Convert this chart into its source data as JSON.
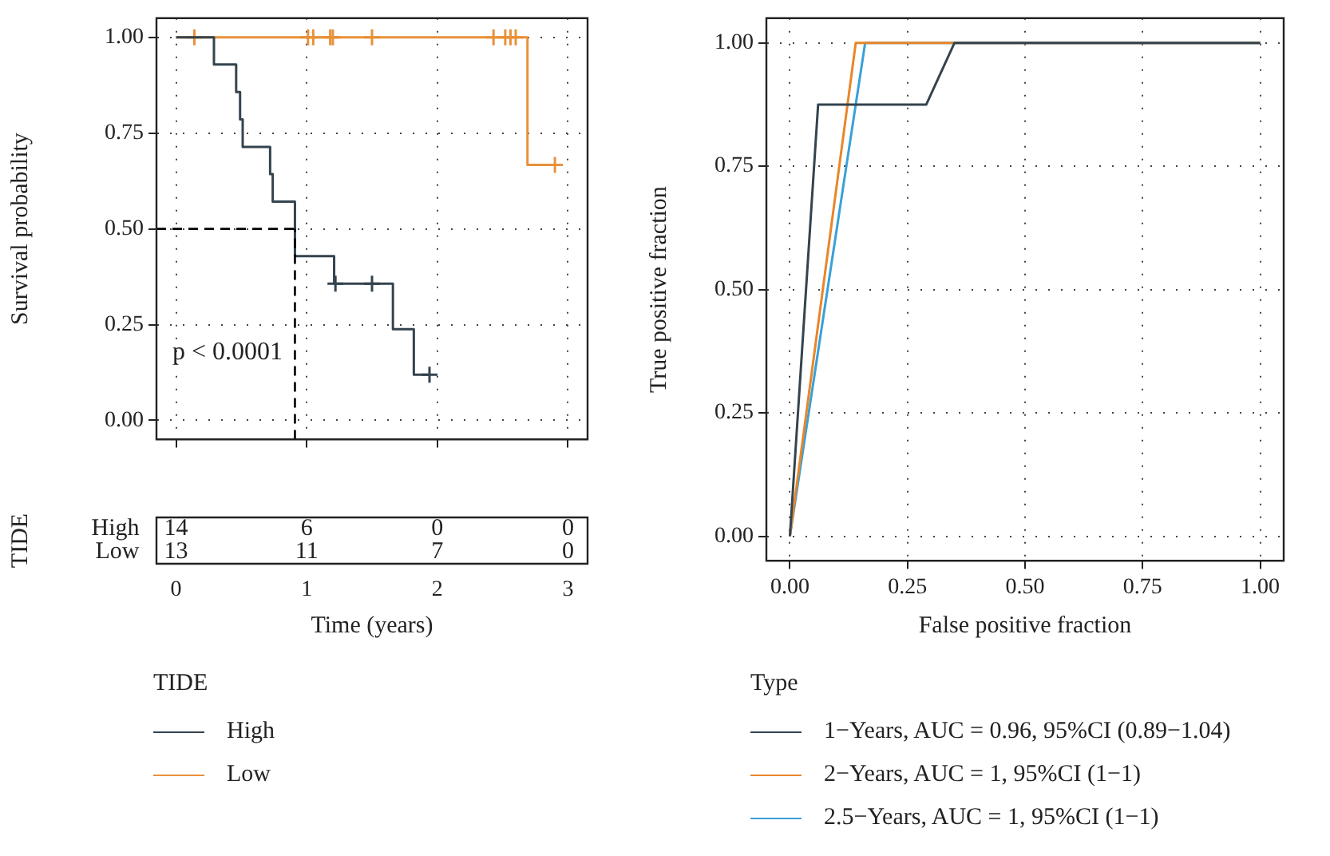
{
  "chart_data": [
    {
      "type": "step",
      "ylabel": "Survival probability",
      "legend_title": "TIDE",
      "legend": "bottom",
      "grid": true,
      "tick_labels": "y",
      "xlim": [
        -0.15,
        3.15
      ],
      "ylim": [
        -0.05,
        1.05
      ],
      "xticks": [
        0,
        1,
        2,
        3
      ],
      "yticks": [
        {
          "value": 0,
          "label": "0.00"
        },
        {
          "value": 0.25,
          "label": "0.25"
        },
        {
          "value": 0.5,
          "label": "0.50"
        },
        {
          "value": 0.75,
          "label": "0.75"
        },
        {
          "value": 1,
          "label": "1.00"
        }
      ],
      "series": [
        {
          "name": "High",
          "color": "#34444f",
          "x": [
            0,
            0.29,
            0.46,
            0.49,
            0.51,
            0.72,
            0.74,
            0.91,
            1.21,
            1.66,
            1.82,
            1.94
          ],
          "values": [
            1,
            0.929,
            0.857,
            0.786,
            0.714,
            0.643,
            0.571,
            0.429,
            0.357,
            0.238,
            0.119,
            0.119
          ]
        },
        {
          "name": "Low",
          "color": "#e8913a",
          "x": [
            0,
            2.69,
            2.9
          ],
          "values": [
            1,
            0.667,
            0.667
          ]
        },
        {
          "type": "scatter",
          "marker": "cross",
          "color": "#34444f",
          "x": [
            1.22,
            1.5,
            1.94
          ],
          "values": [
            0.357,
            0.357,
            0.119
          ]
        },
        {
          "type": "scatter",
          "marker": "cross",
          "color": "#e8913a",
          "x": [
            0.14,
            1.01,
            1.05,
            1.18,
            1.2,
            1.5,
            2.43,
            2.52,
            2.56,
            2.6,
            2.9
          ],
          "values": [
            1,
            1,
            1,
            1,
            1,
            1,
            1,
            1,
            1,
            1,
            0.667
          ]
        }
      ],
      "ref_lines": [
        {
          "axis": "y",
          "value": 0.5,
          "line_style": "dashed",
          "color": "#000000"
        },
        {
          "axis": "x",
          "value": 0.91,
          "line_style": "dashed",
          "color": "#000000"
        }
      ],
      "annotations": [
        "p < 0.0001"
      ]
    },
    {
      "type": "heatmap",
      "ylabel": "TIDE",
      "xlabel": "Time (years)",
      "categories": [
        "0",
        "1",
        "2",
        "3"
      ],
      "y_categories": [
        "High",
        "Low"
      ],
      "cells": [
        [
          14,
          6,
          0,
          0
        ],
        [
          13,
          11,
          7,
          0
        ]
      ],
      "data_labels": true
    },
    {
      "type": "line",
      "xlabel": "False positive fraction",
      "ylabel": "True positive fraction",
      "legend_title": "Type",
      "legend": "bottom",
      "grid": true,
      "xlim": [
        -0.05,
        1.05
      ],
      "ylim": [
        -0.05,
        1.05
      ],
      "xticks": [
        {
          "value": 0,
          "label": "0.00"
        },
        {
          "value": 0.25,
          "label": "0.25"
        },
        {
          "value": 0.5,
          "label": "0.50"
        },
        {
          "value": 0.75,
          "label": "0.75"
        },
        {
          "value": 1,
          "label": "1.00"
        }
      ],
      "yticks": [
        {
          "value": 0,
          "label": "0.00"
        },
        {
          "value": 0.25,
          "label": "0.25"
        },
        {
          "value": 0.5,
          "label": "0.50"
        },
        {
          "value": 0.75,
          "label": "0.75"
        },
        {
          "value": 1,
          "label": "1.00"
        }
      ],
      "series": [
        {
          "name": "1−Years, AUC = 0.96, 95%CI (0.89−1.04)",
          "color": "#34444f",
          "x": [
            0,
            0.06,
            0.29,
            0.35,
            1
          ],
          "values": [
            0,
            0.875,
            0.875,
            1,
            1
          ]
        },
        {
          "name": "2−Years, AUC = 1, 95%CI (1−1)",
          "color": "#e8862a",
          "x": [
            0,
            0.14,
            1
          ],
          "values": [
            0,
            1,
            1
          ]
        },
        {
          "name": "2.5−Years, AUC = 1, 95%CI (1−1)",
          "color": "#3aa0d8",
          "x": [
            0,
            0.16,
            1
          ],
          "values": [
            0,
            1,
            1
          ]
        }
      ]
    }
  ]
}
